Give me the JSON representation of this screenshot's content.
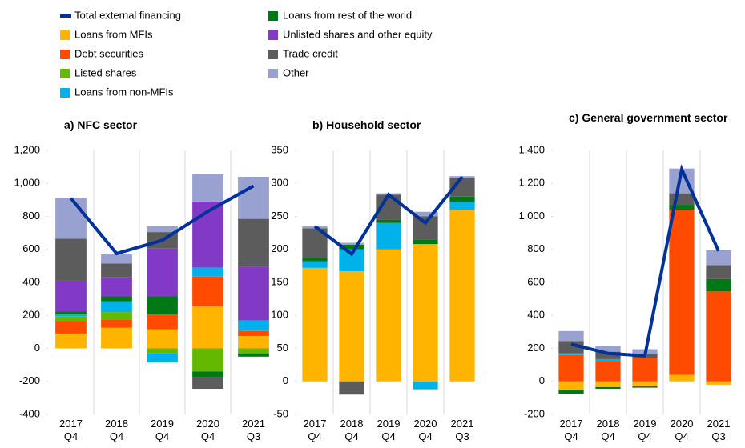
{
  "chart_data": [
    {
      "type": "bar",
      "title": "a) NFC sector",
      "categories": [
        "2017 Q4",
        "2018 Q4",
        "2019 Q4",
        "2020 Q4",
        "2021 Q3"
      ],
      "ylim": [
        -400,
        1200
      ],
      "yticks": [
        -400,
        -200,
        0,
        200,
        400,
        600,
        800,
        {
          "value": 1000,
          "label": "1,000"
        },
        {
          "value": 1200,
          "label": "1,200"
        }
      ],
      "series": [
        {
          "name": "Total external financing",
          "type": "line",
          "color": "#003299",
          "values": [
            910,
            575,
            655,
            830,
            985
          ]
        },
        {
          "name": "Loans from MFIs",
          "color": "#ffb400",
          "values": [
            90,
            125,
            115,
            255,
            75
          ]
        },
        {
          "name": "Debt securities",
          "color": "#ff4b00",
          "values": [
            75,
            50,
            90,
            180,
            30
          ]
        },
        {
          "name": "Listed shares",
          "color": "#65b800",
          "values": [
            30,
            45,
            -30,
            -140,
            -30
          ]
        },
        {
          "name": "Loans from non-MFIs",
          "color": "#00b1ea",
          "values": [
            10,
            65,
            -55,
            55,
            65
          ]
        },
        {
          "name": "Loans from rest of the world",
          "color": "#007816",
          "values": [
            20,
            30,
            110,
            -35,
            -20
          ]
        },
        {
          "name": "Unlisted shares and other equity",
          "color": "#8139c6",
          "values": [
            185,
            115,
            290,
            400,
            325
          ]
        },
        {
          "name": "Trade credit",
          "color": "#5c5c5c",
          "values": [
            255,
            85,
            100,
            -70,
            290
          ]
        },
        {
          "name": "Other",
          "color": "#98a1d0",
          "values": [
            245,
            55,
            35,
            165,
            255
          ]
        }
      ]
    },
    {
      "type": "bar",
      "title": "b) Household sector",
      "categories": [
        "2017 Q4",
        "2018 Q4",
        "2019 Q4",
        "2020 Q4",
        "2021 Q3"
      ],
      "ylim": [
        -50,
        350
      ],
      "yticks": [
        -50,
        0,
        50,
        100,
        150,
        200,
        250,
        300,
        350
      ],
      "series": [
        {
          "type": "line",
          "values": [
            235,
            193,
            283,
            240,
            310
          ]
        },
        {
          "values": [
            172,
            167,
            200,
            208,
            260
          ]
        },
        {
          "values": [
            0,
            0,
            0,
            0,
            0
          ]
        },
        {
          "values": [
            0,
            0,
            0,
            0,
            0
          ]
        },
        {
          "values": [
            10,
            33,
            40,
            -12,
            12
          ]
        },
        {
          "values": [
            5,
            7,
            5,
            7,
            8
          ]
        },
        {
          "values": [
            0,
            0,
            0,
            0,
            0
          ]
        },
        {
          "values": [
            45,
            -20,
            38,
            35,
            28
          ]
        },
        {
          "values": [
            3,
            3,
            2,
            7,
            3
          ]
        }
      ]
    },
    {
      "type": "bar",
      "title": "c) General government sector",
      "categories": [
        "2017 Q4",
        "2018 Q4",
        "2019 Q4",
        "2020 Q4",
        "2021 Q3"
      ],
      "ylim": [
        -200,
        1400
      ],
      "yticks": [
        -200,
        0,
        200,
        400,
        600,
        800,
        {
          "value": 1000,
          "label": "1,000"
        },
        {
          "value": 1200,
          "label": "1,200"
        },
        {
          "value": 1400,
          "label": "1,400"
        }
      ],
      "series": [
        {
          "type": "line",
          "values": [
            225,
            170,
            155,
            1285,
            790
          ]
        },
        {
          "values": [
            -50,
            -35,
            -30,
            40,
            -20
          ]
        },
        {
          "values": [
            160,
            120,
            140,
            1000,
            545
          ]
        },
        {
          "values": [
            0,
            0,
            0,
            0,
            0
          ]
        },
        {
          "values": [
            10,
            15,
            0,
            0,
            0
          ]
        },
        {
          "values": [
            -25,
            -10,
            -8,
            30,
            75
          ]
        },
        {
          "values": [
            0,
            0,
            0,
            0,
            0
          ]
        },
        {
          "values": [
            75,
            45,
            25,
            70,
            85
          ]
        },
        {
          "values": [
            60,
            35,
            30,
            150,
            90
          ]
        }
      ]
    }
  ]
}
